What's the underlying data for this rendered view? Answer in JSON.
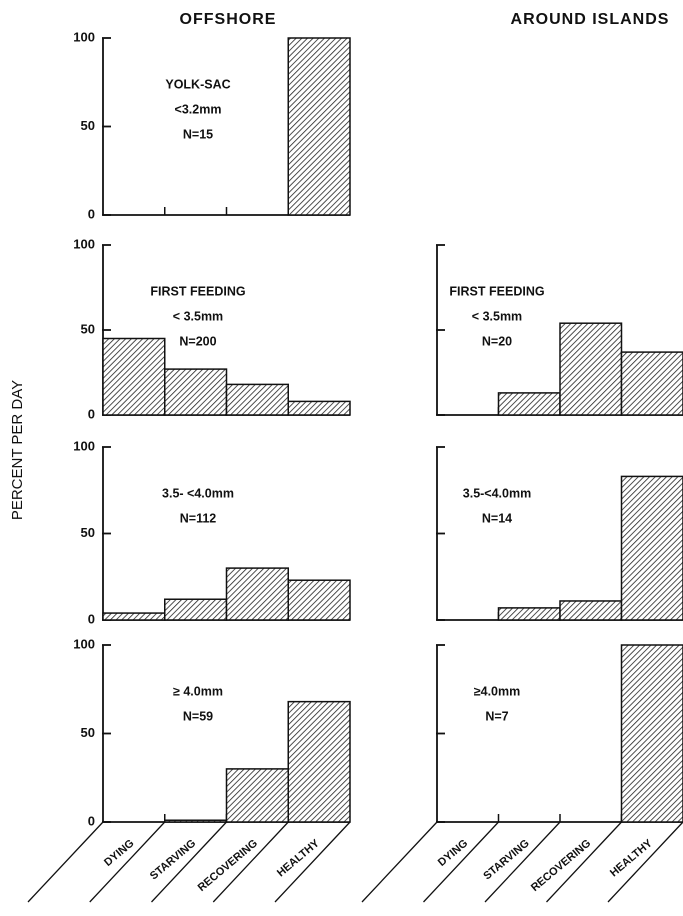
{
  "column_titles": [
    "OFFSHORE",
    "AROUND ISLANDS"
  ],
  "y_axis_label": "PERCENT PER DAY",
  "chart_data": [
    {
      "type": "bar",
      "annotations": [
        "YOLK-SAC",
        "<3.2mm",
        "N=15"
      ],
      "categories": [
        null,
        null,
        null,
        null
      ],
      "values": [
        0,
        0,
        0,
        100
      ],
      "ylim": [
        0,
        100
      ],
      "yticks": [
        0,
        50,
        100
      ],
      "show_tick_labels": true,
      "fill": "hatch"
    },
    {
      "type": "bar",
      "annotations": [
        "FIRST   FEEDING",
        "< 3.5mm",
        "N=200"
      ],
      "categories": [
        null,
        null,
        null,
        null
      ],
      "values": [
        45,
        27,
        18,
        8
      ],
      "ylim": [
        0,
        100
      ],
      "yticks": [
        0,
        50,
        100
      ],
      "show_tick_labels": true,
      "fill": "hatch"
    },
    {
      "type": "bar",
      "annotations": [
        "3.5- <4.0mm",
        "N=112"
      ],
      "categories": [
        null,
        null,
        null,
        null
      ],
      "values": [
        4,
        12,
        30,
        23
      ],
      "ylim": [
        0,
        100
      ],
      "yticks": [
        0,
        50,
        100
      ],
      "show_tick_labels": true,
      "fill": "hatch"
    },
    {
      "type": "bar",
      "annotations": [
        "≥ 4.0mm",
        "N=59"
      ],
      "categories": [
        "DYING",
        "STARVING",
        "RECOVERING",
        "HEALTHY"
      ],
      "values": [
        0,
        1,
        30,
        68
      ],
      "ylim": [
        0,
        100
      ],
      "yticks": [
        0,
        50,
        100
      ],
      "show_tick_labels": true,
      "fill": "hatch"
    },
    {
      "type": "bar",
      "annotations": [
        "FIRST   FEEDING",
        "< 3.5mm",
        "N=20"
      ],
      "categories": [
        null,
        null,
        null,
        null
      ],
      "values": [
        0,
        13,
        54,
        37
      ],
      "ylim": [
        0,
        100
      ],
      "yticks": [
        0,
        50,
        100
      ],
      "show_tick_labels": false,
      "fill": "hatch"
    },
    {
      "type": "bar",
      "annotations": [
        "3.5-<4.0mm",
        "N=14"
      ],
      "categories": [
        null,
        null,
        null,
        null
      ],
      "values": [
        0,
        7,
        11,
        83
      ],
      "ylim": [
        0,
        100
      ],
      "yticks": [
        0,
        50,
        100
      ],
      "show_tick_labels": false,
      "fill": "hatch"
    },
    {
      "type": "bar",
      "annotations": [
        "≥4.0mm",
        "N=7"
      ],
      "categories": [
        "DYING",
        "STARVING",
        "RECOVERING",
        "HEALTHY"
      ],
      "values": [
        0,
        0,
        0,
        100
      ],
      "ylim": [
        0,
        100
      ],
      "yticks": [
        0,
        50,
        100
      ],
      "show_tick_labels": false,
      "fill": "hatch"
    }
  ]
}
